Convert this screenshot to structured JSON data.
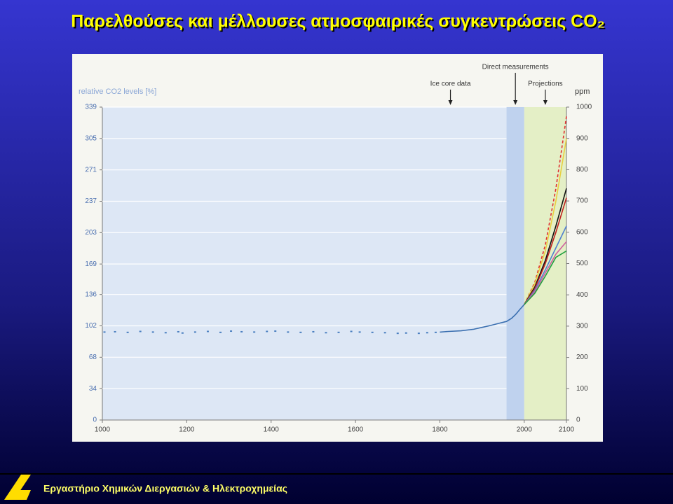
{
  "slide": {
    "title": "Παρελθούσες και μέλλουσες ατμοσφαιρικές συγκεντρώσεις CO₂",
    "footer": "Εργαστήριο Χημικών Διεργασιών & Ηλεκτροχημείας"
  },
  "chart_data": {
    "type": "line",
    "y_label": "relative CO2 levels [%]",
    "y2_label": "ppm",
    "xlim": [
      1000,
      2100
    ],
    "xticks": [
      1000,
      1200,
      1400,
      1600,
      1800,
      2000,
      2100
    ],
    "ylim": [
      0,
      339
    ],
    "yticks": [
      0,
      34,
      68,
      102,
      136,
      169,
      203,
      237,
      271,
      305,
      339
    ],
    "y2lim": [
      0,
      1000
    ],
    "y2ticks": [
      0,
      100,
      200,
      300,
      400,
      500,
      600,
      700,
      800,
      900,
      1000
    ],
    "grid": true,
    "regions": [
      {
        "label": "Ice core data",
        "xlim": [
          1000,
          1958
        ],
        "color": "#dde7f5"
      },
      {
        "label": "Direct measurements",
        "xlim": [
          1958,
          2000
        ],
        "color": "#bfd2ee"
      },
      {
        "label": "Projections",
        "xlim": [
          2000,
          2100
        ],
        "color": "#e4efc6"
      }
    ],
    "series": [
      {
        "mode": "markers",
        "axis": "y2",
        "color": "#4a7fc0",
        "x": [
          1005,
          1030,
          1060,
          1090,
          1120,
          1150,
          1180,
          1190,
          1220,
          1250,
          1280,
          1305,
          1330,
          1360,
          1390,
          1410,
          1440,
          1470,
          1500,
          1530,
          1560,
          1590,
          1610,
          1640,
          1670,
          1700,
          1720,
          1750,
          1770,
          1790
        ],
        "values": [
          281,
          282,
          280,
          283,
          281,
          279,
          282,
          278,
          281,
          283,
          280,
          284,
          282,
          281,
          283,
          284,
          281,
          280,
          282,
          279,
          280,
          283,
          281,
          280,
          279,
          277,
          278,
          277,
          279,
          280
        ]
      },
      {
        "axis": "y2",
        "color": "#3a6fb0",
        "x": [
          1800,
          1820,
          1850,
          1880,
          1900,
          1920,
          1940,
          1958,
          1970,
          1980,
          1990,
          2000
        ],
        "values": [
          281,
          283,
          285,
          290,
          296,
          302,
          309,
          315,
          325,
          338,
          354,
          369
        ]
      },
      {
        "axis": "y2",
        "color": "#e03030",
        "dash": true,
        "x": [
          2000,
          2025,
          2050,
          2075,
          2100
        ],
        "values": [
          369,
          440,
          560,
          740,
          970
        ]
      },
      {
        "axis": "y2",
        "color": "#e8d040",
        "x": [
          2000,
          2025,
          2050,
          2075,
          2100
        ],
        "values": [
          369,
          435,
          540,
          700,
          900
        ]
      },
      {
        "axis": "y2",
        "color": "#111111",
        "x": [
          2000,
          2025,
          2050,
          2075,
          2100
        ],
        "values": [
          369,
          425,
          510,
          620,
          740
        ]
      },
      {
        "axis": "y2",
        "color": "#c02020",
        "x": [
          2000,
          2025,
          2050,
          2075,
          2100
        ],
        "values": [
          369,
          420,
          500,
          600,
          710
        ]
      },
      {
        "axis": "y2",
        "color": "#5080d0",
        "x": [
          2000,
          2025,
          2050,
          2075,
          2100
        ],
        "values": [
          369,
          415,
          480,
          550,
          620
        ]
      },
      {
        "axis": "y2",
        "color": "#d060a0",
        "x": [
          2000,
          2025,
          2050,
          2075,
          2100
        ],
        "values": [
          369,
          410,
          470,
          530,
          570
        ]
      },
      {
        "axis": "y2",
        "color": "#20a040",
        "x": [
          2000,
          2025,
          2050,
          2075,
          2100
        ],
        "values": [
          369,
          405,
          460,
          520,
          540
        ]
      }
    ]
  }
}
